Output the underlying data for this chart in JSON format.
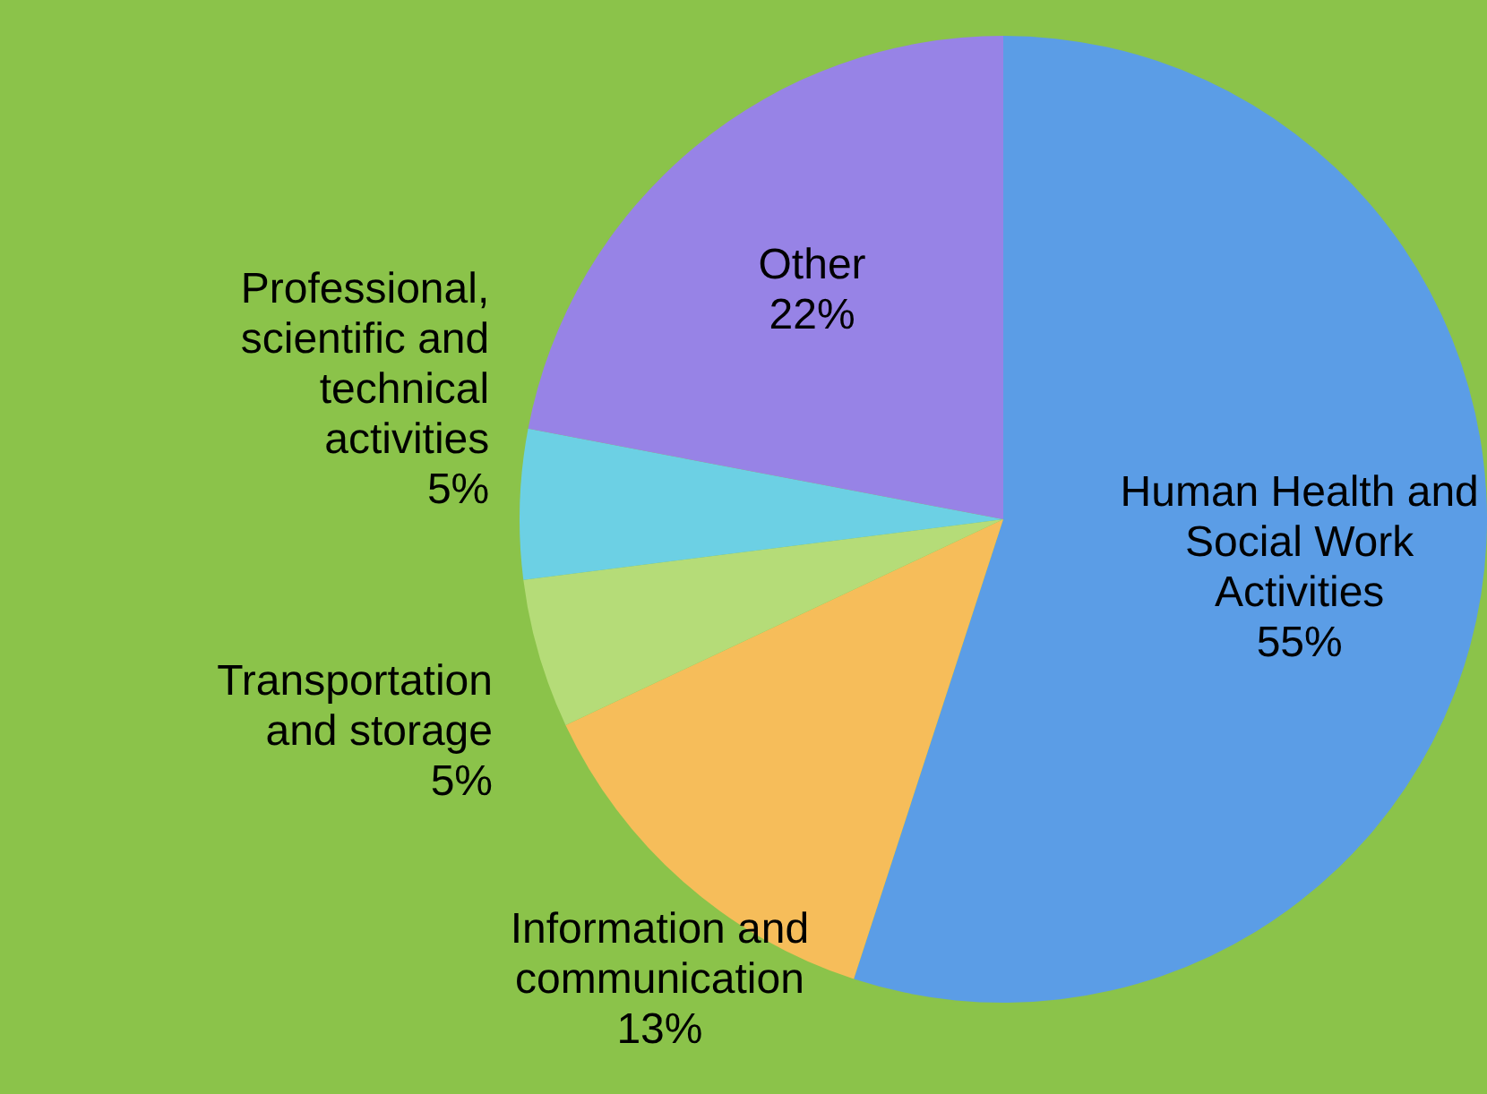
{
  "chart_data": {
    "type": "pie",
    "categories": [
      "Human Health and Social Work Activities",
      "Information and communication",
      "Transportation and storage",
      "Professional, scientific and technical activities",
      "Other"
    ],
    "values": [
      55,
      13,
      5,
      5,
      22
    ],
    "colors": [
      "#5b9de6",
      "#f6bd5a",
      "#b5dc78",
      "#6cd0e4",
      "#9783e6"
    ],
    "value_labels": [
      "55%",
      "13%",
      "5%",
      "5%",
      "22%"
    ]
  }
}
